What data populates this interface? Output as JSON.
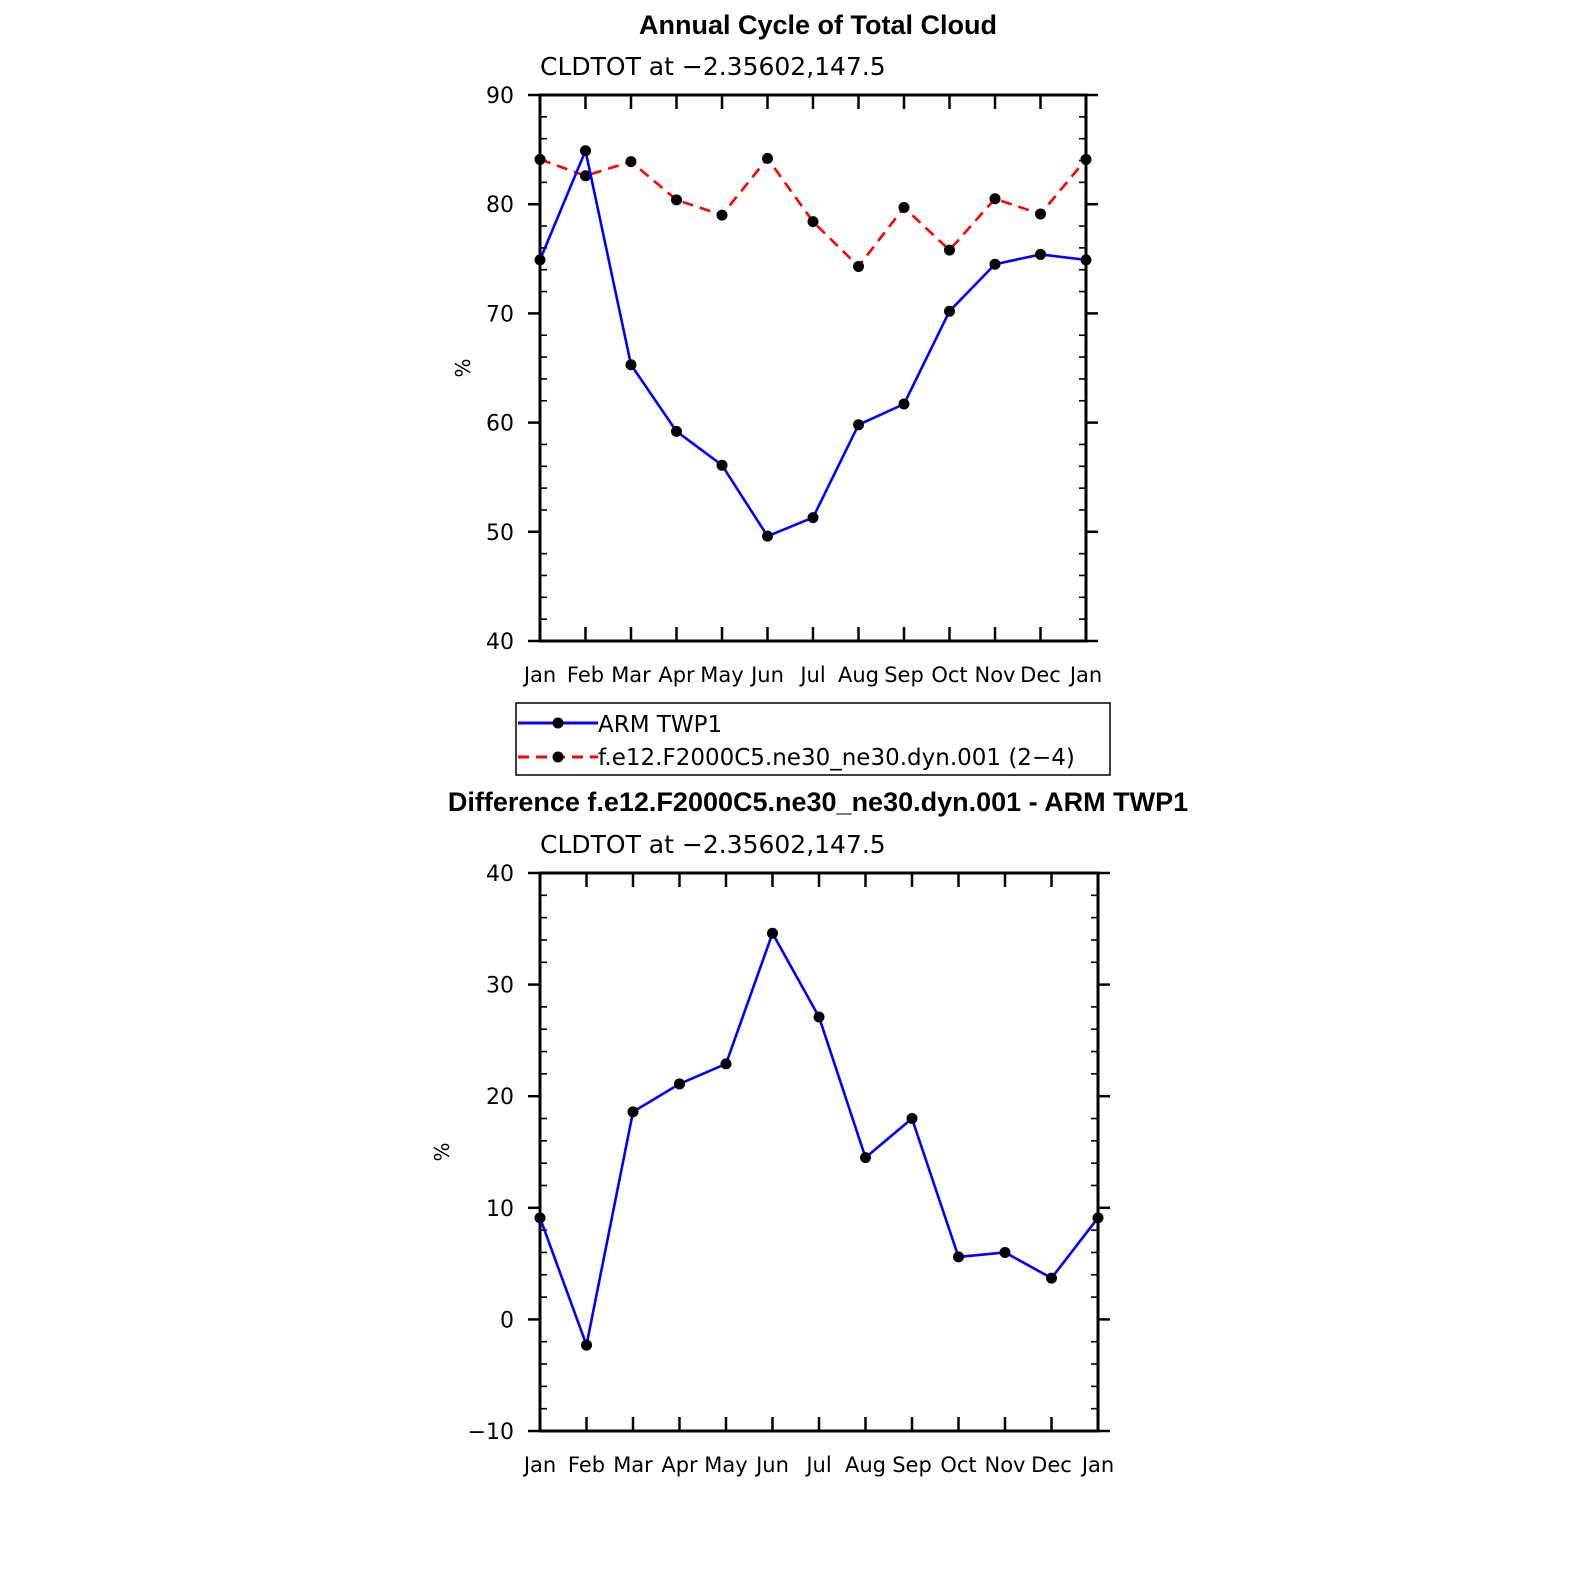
{
  "chart_data": [
    {
      "type": "line",
      "title": "Annual Cycle of Total Cloud",
      "subtitle": "CLDTOT at −2.35602,147.5",
      "xlabel": "",
      "ylabel": "%",
      "categories": [
        "Jan",
        "Feb",
        "Mar",
        "Apr",
        "May",
        "Jun",
        "Jul",
        "Aug",
        "Sep",
        "Oct",
        "Nov",
        "Dec",
        "Jan"
      ],
      "ylim": [
        40,
        90
      ],
      "yticks": [
        40,
        50,
        60,
        70,
        80,
        90
      ],
      "series": [
        {
          "name": "ARM TWP1",
          "color": "#0000ff",
          "dash": "solid",
          "values": [
            74.9,
            84.9,
            65.3,
            59.2,
            56.1,
            49.6,
            51.3,
            59.8,
            61.7,
            70.2,
            74.5,
            75.4,
            74.9
          ]
        },
        {
          "name": "f.e12.F2000C5.ne30_ne30.dyn.001 (2−4)",
          "color": "#ff0000",
          "dash": "dashed",
          "values": [
            84.1,
            82.6,
            83.9,
            80.4,
            79.0,
            84.2,
            78.4,
            74.3,
            79.7,
            75.8,
            80.5,
            79.1,
            84.1
          ]
        }
      ],
      "legend": {
        "placement": "bottom",
        "entries": [
          "ARM TWP1",
          "f.e12.F2000C5.ne30_ne30.dyn.001 (2−4)"
        ]
      }
    },
    {
      "type": "line",
      "title": "Difference f.e12.F2000C5.ne30_ne30.dyn.001 - ARM TWP1",
      "subtitle": "CLDTOT at −2.35602,147.5",
      "xlabel": "",
      "ylabel": "%",
      "categories": [
        "Jan",
        "Feb",
        "Mar",
        "Apr",
        "May",
        "Jun",
        "Jul",
        "Aug",
        "Sep",
        "Oct",
        "Nov",
        "Dec",
        "Jan"
      ],
      "ylim": [
        -10,
        40
      ],
      "yticks": [
        -10,
        0,
        10,
        20,
        30,
        40
      ],
      "ytick_labels": [
        "−10",
        "0",
        "10",
        "20",
        "30",
        "40"
      ],
      "series": [
        {
          "name": "Difference",
          "color": "#0000ff",
          "dash": "solid",
          "values": [
            9.1,
            -2.3,
            18.6,
            21.1,
            22.9,
            34.6,
            27.1,
            14.5,
            18.0,
            5.6,
            6.0,
            3.7,
            9.1
          ]
        }
      ]
    }
  ]
}
